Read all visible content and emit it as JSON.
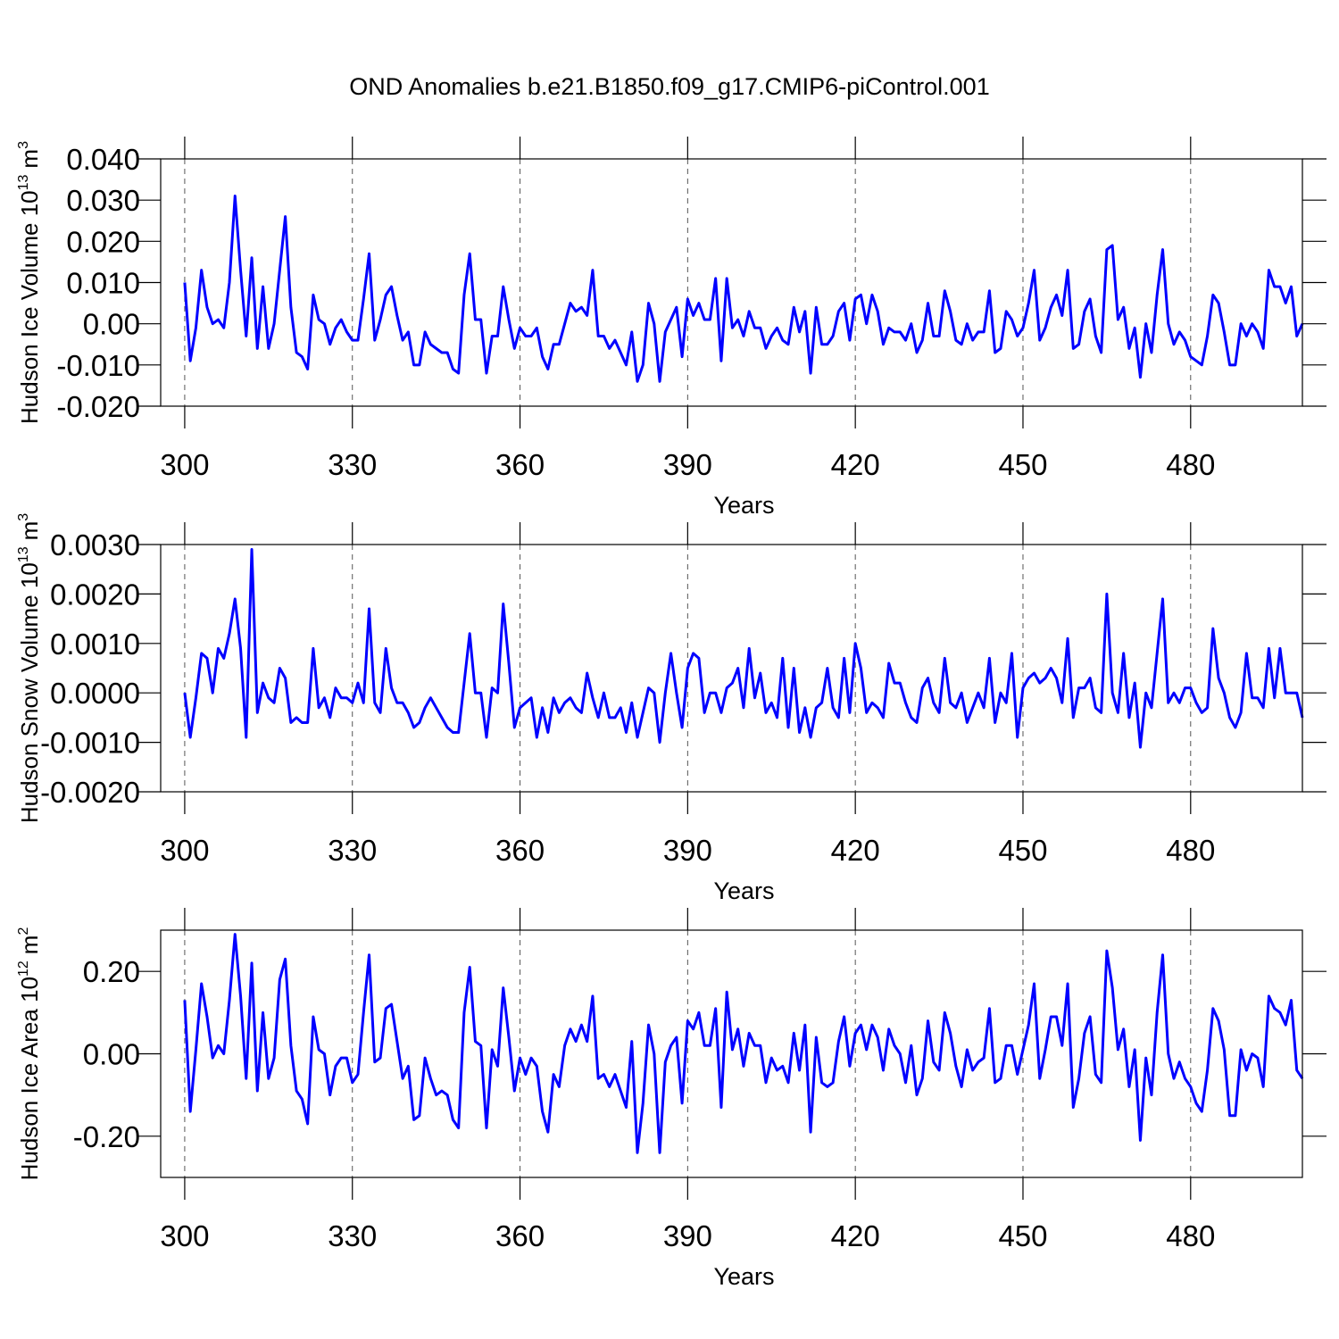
{
  "chart_data": [
    {
      "type": "line",
      "title": "OND Anomalies b.e21.B1850.f09_g17.CMIP6-piControl.001",
      "ylabel": [
        "Hudson Ice Volume 10",
        "13",
        "m",
        "3"
      ],
      "xlabel": "Years",
      "color": "#0000ff",
      "grid_x": true,
      "xlim": [
        295.7,
        500
      ],
      "xticks": [
        300,
        330,
        360,
        390,
        420,
        450,
        480
      ],
      "ylim": [
        -0.02,
        0.04
      ],
      "yticks": [
        {
          "value": 0.04,
          "label": "0.040"
        },
        {
          "value": 0.03,
          "label": "0.030"
        },
        {
          "value": 0.02,
          "label": "0.020"
        },
        {
          "value": 0.01,
          "label": "0.010"
        },
        {
          "value": 0,
          "label": "0.00"
        },
        {
          "value": -0.01,
          "label": "-0.010"
        },
        {
          "value": -0.02,
          "label": "-0.020"
        }
      ],
      "x": [
        300,
        301,
        302,
        303,
        304,
        305,
        306,
        307,
        308,
        309,
        310,
        311,
        312,
        313,
        314,
        315,
        316,
        317,
        318,
        319,
        320,
        321,
        322,
        323,
        324,
        325,
        326,
        327,
        328,
        329,
        330,
        331,
        332,
        333,
        334,
        335,
        336,
        337,
        338,
        339,
        340,
        341,
        342,
        343,
        344,
        345,
        346,
        347,
        348,
        349,
        350,
        351,
        352,
        353,
        354,
        355,
        356,
        357,
        358,
        359,
        360,
        361,
        362,
        363,
        364,
        365,
        366,
        367,
        368,
        369,
        370,
        371,
        372,
        373,
        374,
        375,
        376,
        377,
        378,
        379,
        380,
        381,
        382,
        383,
        384,
        385,
        386,
        387,
        388,
        389,
        390,
        391,
        392,
        393,
        394,
        395,
        396,
        397,
        398,
        399,
        400,
        401,
        402,
        403,
        404,
        405,
        406,
        407,
        408,
        409,
        410,
        411,
        412,
        413,
        414,
        415,
        416,
        417,
        418,
        419,
        420,
        421,
        422,
        423,
        424,
        425,
        426,
        427,
        428,
        429,
        430,
        431,
        432,
        433,
        434,
        435,
        436,
        437,
        438,
        439,
        440,
        441,
        442,
        443,
        444,
        445,
        446,
        447,
        448,
        449,
        450,
        451,
        452,
        453,
        454,
        455,
        456,
        457,
        458,
        459,
        460,
        461,
        462,
        463,
        464,
        465,
        466,
        467,
        468,
        469,
        470,
        471,
        472,
        473,
        474,
        475,
        476,
        477,
        478,
        479,
        480,
        481,
        482,
        483,
        484,
        485,
        486,
        487,
        488,
        489,
        490,
        491,
        492,
        493,
        494,
        495,
        496,
        497,
        498,
        499,
        500
      ],
      "values": [
        0.01,
        -0.009,
        -0.001,
        0.013,
        0.004,
        0.0,
        0.001,
        -0.001,
        0.01,
        0.031,
        0.013,
        -0.003,
        0.016,
        -0.006,
        0.009,
        -0.006,
        0.0,
        0.013,
        0.026,
        0.004,
        -0.007,
        -0.008,
        -0.011,
        0.007,
        0.001,
        0.0,
        -0.005,
        -0.001,
        0.001,
        -0.002,
        -0.004,
        -0.004,
        0.006,
        0.017,
        -0.004,
        0.001,
        0.007,
        0.009,
        0.002,
        -0.004,
        -0.002,
        -0.01,
        -0.01,
        -0.002,
        -0.005,
        -0.006,
        -0.007,
        -0.007,
        -0.011,
        -0.012,
        0.007,
        0.017,
        0.001,
        0.001,
        -0.012,
        -0.003,
        -0.003,
        0.009,
        0.001,
        -0.006,
        -0.001,
        -0.003,
        -0.003,
        -0.001,
        -0.008,
        -0.011,
        -0.005,
        -0.005,
        0.0,
        0.005,
        0.003,
        0.004,
        0.002,
        0.013,
        -0.003,
        -0.003,
        -0.006,
        -0.004,
        -0.007,
        -0.01,
        -0.002,
        -0.014,
        -0.01,
        0.005,
        0.0,
        -0.014,
        -0.002,
        0.001,
        0.004,
        -0.008,
        0.006,
        0.002,
        0.005,
        0.001,
        0.001,
        0.011,
        -0.009,
        0.011,
        -0.001,
        0.001,
        -0.003,
        0.003,
        -0.001,
        -0.001,
        -0.006,
        -0.003,
        -0.001,
        -0.004,
        -0.005,
        0.004,
        -0.002,
        0.003,
        -0.012,
        0.004,
        -0.005,
        -0.005,
        -0.003,
        0.003,
        0.005,
        -0.004,
        0.006,
        0.007,
        0.0,
        0.007,
        0.003,
        -0.005,
        -0.001,
        -0.002,
        -0.002,
        -0.004,
        0.0,
        -0.007,
        -0.004,
        0.005,
        -0.003,
        -0.003,
        0.008,
        0.003,
        -0.004,
        -0.005,
        0.0,
        -0.004,
        -0.002,
        -0.002,
        0.008,
        -0.007,
        -0.006,
        0.003,
        0.001,
        -0.003,
        -0.001,
        0.005,
        0.013,
        -0.004,
        -0.001,
        0.004,
        0.007,
        0.002,
        0.013,
        -0.006,
        -0.005,
        0.003,
        0.006,
        -0.003,
        -0.007,
        0.018,
        0.019,
        0.001,
        0.004,
        -0.006,
        -0.001,
        -0.013,
        0.0,
        -0.007,
        0.007,
        0.018,
        0.0,
        -0.005,
        -0.002,
        -0.004,
        -0.008,
        -0.009,
        -0.01,
        -0.003,
        0.007,
        0.005,
        -0.002,
        -0.01,
        -0.01,
        0.0,
        -0.003,
        0.0,
        -0.002,
        -0.006,
        0.013,
        0.009,
        0.009,
        0.005,
        0.009,
        -0.003,
        0.0
      ]
    },
    {
      "type": "line",
      "ylabel": [
        "Hudson Snow Volume 10",
        "13",
        "m",
        "3"
      ],
      "xlabel": "Years",
      "color": "#0000ff",
      "grid_x": true,
      "xlim": [
        295.7,
        500
      ],
      "xticks": [
        300,
        330,
        360,
        390,
        420,
        450,
        480
      ],
      "ylim": [
        -0.002,
        0.003
      ],
      "yticks": [
        {
          "value": 0.003,
          "label": "0.0030"
        },
        {
          "value": 0.002,
          "label": "0.0020"
        },
        {
          "value": 0.001,
          "label": "0.0010"
        },
        {
          "value": 0,
          "label": "0.0000"
        },
        {
          "value": -0.001,
          "label": "-0.0010"
        },
        {
          "value": -0.002,
          "label": "-0.0020"
        }
      ],
      "x": [
        300,
        301,
        302,
        303,
        304,
        305,
        306,
        307,
        308,
        309,
        310,
        311,
        312,
        313,
        314,
        315,
        316,
        317,
        318,
        319,
        320,
        321,
        322,
        323,
        324,
        325,
        326,
        327,
        328,
        329,
        330,
        331,
        332,
        333,
        334,
        335,
        336,
        337,
        338,
        339,
        340,
        341,
        342,
        343,
        344,
        345,
        346,
        347,
        348,
        349,
        350,
        351,
        352,
        353,
        354,
        355,
        356,
        357,
        358,
        359,
        360,
        361,
        362,
        363,
        364,
        365,
        366,
        367,
        368,
        369,
        370,
        371,
        372,
        373,
        374,
        375,
        376,
        377,
        378,
        379,
        380,
        381,
        382,
        383,
        384,
        385,
        386,
        387,
        388,
        389,
        390,
        391,
        392,
        393,
        394,
        395,
        396,
        397,
        398,
        399,
        400,
        401,
        402,
        403,
        404,
        405,
        406,
        407,
        408,
        409,
        410,
        411,
        412,
        413,
        414,
        415,
        416,
        417,
        418,
        419,
        420,
        421,
        422,
        423,
        424,
        425,
        426,
        427,
        428,
        429,
        430,
        431,
        432,
        433,
        434,
        435,
        436,
        437,
        438,
        439,
        440,
        441,
        442,
        443,
        444,
        445,
        446,
        447,
        448,
        449,
        450,
        451,
        452,
        453,
        454,
        455,
        456,
        457,
        458,
        459,
        460,
        461,
        462,
        463,
        464,
        465,
        466,
        467,
        468,
        469,
        470,
        471,
        472,
        473,
        474,
        475,
        476,
        477,
        478,
        479,
        480,
        481,
        482,
        483,
        484,
        485,
        486,
        487,
        488,
        489,
        490,
        491,
        492,
        493,
        494,
        495,
        496,
        497,
        498,
        499,
        500
      ],
      "values": [
        0.0,
        -0.0009,
        -0.0001,
        0.0008,
        0.0007,
        0.0,
        0.0009,
        0.0007,
        0.0012,
        0.0019,
        0.0009,
        -0.0009,
        0.0029,
        -0.0004,
        0.0002,
        -0.0001,
        -0.0002,
        0.0005,
        0.0003,
        -0.0006,
        -0.0005,
        -0.0006,
        -0.0006,
        0.0009,
        -0.0003,
        -0.0001,
        -0.0005,
        0.0001,
        -0.0001,
        -0.0001,
        -0.0002,
        0.0002,
        -0.0002,
        0.0017,
        -0.0002,
        -0.0004,
        0.0009,
        0.0001,
        -0.0002,
        -0.0002,
        -0.0004,
        -0.0007,
        -0.0006,
        -0.0003,
        -0.0001,
        -0.0003,
        -0.0005,
        -0.0007,
        -0.0008,
        -0.0008,
        0.0002,
        0.0012,
        0.0,
        0.0,
        -0.0009,
        0.0001,
        0.0,
        0.0018,
        0.0006,
        -0.0007,
        -0.0003,
        -0.0002,
        -0.0001,
        -0.0009,
        -0.0003,
        -0.0008,
        -0.0001,
        -0.0004,
        -0.0002,
        -0.0001,
        -0.0003,
        -0.0004,
        0.0004,
        -0.0001,
        -0.0005,
        0.0,
        -0.0005,
        -0.0005,
        -0.0003,
        -0.0008,
        -0.0002,
        -0.0009,
        -0.0004,
        0.0001,
        0.0,
        -0.001,
        0.0,
        0.0008,
        0.0,
        -0.0007,
        0.0005,
        0.0008,
        0.0007,
        -0.0004,
        0.0,
        0.0,
        -0.0004,
        0.0001,
        0.0002,
        0.0005,
        -0.0003,
        0.0009,
        -0.0001,
        0.0004,
        -0.0004,
        -0.0002,
        -0.0005,
        0.0007,
        -0.0007,
        0.0005,
        -0.0008,
        -0.0003,
        -0.0009,
        -0.0003,
        -0.0002,
        0.0005,
        -0.0003,
        -0.0005,
        0.0007,
        -0.0004,
        0.001,
        0.0005,
        -0.0004,
        -0.0002,
        -0.0003,
        -0.0005,
        0.0006,
        0.0002,
        0.0002,
        -0.0002,
        -0.0005,
        -0.0006,
        0.0001,
        0.0003,
        -0.0002,
        -0.0004,
        0.0007,
        -0.0002,
        -0.0003,
        0.0,
        -0.0006,
        -0.0003,
        0.0,
        -0.0003,
        0.0007,
        -0.0006,
        0.0,
        -0.0002,
        0.0008,
        -0.0009,
        0.0001,
        0.0003,
        0.0004,
        0.0002,
        0.0003,
        0.0005,
        0.0003,
        -0.0002,
        0.0011,
        -0.0005,
        0.0001,
        0.0001,
        0.0003,
        -0.0003,
        -0.0004,
        0.002,
        0.0,
        -0.0004,
        0.0008,
        -0.0005,
        0.0002,
        -0.0011,
        0.0,
        -0.0003,
        0.0008,
        0.0019,
        -0.0002,
        0.0,
        -0.0002,
        0.0001,
        0.0001,
        -0.0002,
        -0.0004,
        -0.0003,
        0.0013,
        0.0003,
        0.0,
        -0.0005,
        -0.0007,
        -0.0004,
        0.0008,
        -0.0001,
        -0.0001,
        -0.0003,
        0.0009,
        -0.0001,
        0.0009,
        0.0,
        0.0,
        0.0,
        -0.0005
      ]
    },
    {
      "type": "line",
      "ylabel": [
        "Hudson Ice Area 10",
        "12",
        "m",
        "2"
      ],
      "xlabel": "Years",
      "color": "#0000ff",
      "grid_x": true,
      "xlim": [
        295.7,
        500
      ],
      "xticks": [
        300,
        330,
        360,
        390,
        420,
        450,
        480
      ],
      "ylim": [
        -0.3,
        0.3
      ],
      "yticks": [
        {
          "value": 0.2,
          "label": "0.20"
        },
        {
          "value": 0,
          "label": "0.00"
        },
        {
          "value": -0.2,
          "label": "-0.20"
        }
      ],
      "x": [
        300,
        301,
        302,
        303,
        304,
        305,
        306,
        307,
        308,
        309,
        310,
        311,
        312,
        313,
        314,
        315,
        316,
        317,
        318,
        319,
        320,
        321,
        322,
        323,
        324,
        325,
        326,
        327,
        328,
        329,
        330,
        331,
        332,
        333,
        334,
        335,
        336,
        337,
        338,
        339,
        340,
        341,
        342,
        343,
        344,
        345,
        346,
        347,
        348,
        349,
        350,
        351,
        352,
        353,
        354,
        355,
        356,
        357,
        358,
        359,
        360,
        361,
        362,
        363,
        364,
        365,
        366,
        367,
        368,
        369,
        370,
        371,
        372,
        373,
        374,
        375,
        376,
        377,
        378,
        379,
        380,
        381,
        382,
        383,
        384,
        385,
        386,
        387,
        388,
        389,
        390,
        391,
        392,
        393,
        394,
        395,
        396,
        397,
        398,
        399,
        400,
        401,
        402,
        403,
        404,
        405,
        406,
        407,
        408,
        409,
        410,
        411,
        412,
        413,
        414,
        415,
        416,
        417,
        418,
        419,
        420,
        421,
        422,
        423,
        424,
        425,
        426,
        427,
        428,
        429,
        430,
        431,
        432,
        433,
        434,
        435,
        436,
        437,
        438,
        439,
        440,
        441,
        442,
        443,
        444,
        445,
        446,
        447,
        448,
        449,
        450,
        451,
        452,
        453,
        454,
        455,
        456,
        457,
        458,
        459,
        460,
        461,
        462,
        463,
        464,
        465,
        466,
        467,
        468,
        469,
        470,
        471,
        472,
        473,
        474,
        475,
        476,
        477,
        478,
        479,
        480,
        481,
        482,
        483,
        484,
        485,
        486,
        487,
        488,
        489,
        490,
        491,
        492,
        493,
        494,
        495,
        496,
        497,
        498,
        499,
        500
      ],
      "values": [
        0.13,
        -0.14,
        0.01,
        0.17,
        0.09,
        -0.01,
        0.02,
        0.0,
        0.13,
        0.29,
        0.14,
        -0.06,
        0.22,
        -0.09,
        0.1,
        -0.06,
        -0.01,
        0.18,
        0.23,
        0.02,
        -0.09,
        -0.11,
        -0.17,
        0.09,
        0.01,
        0.0,
        -0.1,
        -0.03,
        -0.01,
        -0.01,
        -0.07,
        -0.05,
        0.1,
        0.24,
        -0.02,
        -0.01,
        0.11,
        0.12,
        0.03,
        -0.06,
        -0.03,
        -0.16,
        -0.15,
        -0.01,
        -0.06,
        -0.1,
        -0.09,
        -0.1,
        -0.16,
        -0.18,
        0.1,
        0.21,
        0.03,
        0.02,
        -0.18,
        0.01,
        -0.03,
        0.16,
        0.04,
        -0.09,
        -0.01,
        -0.05,
        -0.01,
        -0.03,
        -0.14,
        -0.19,
        -0.05,
        -0.08,
        0.02,
        0.06,
        0.03,
        0.07,
        0.03,
        0.14,
        -0.06,
        -0.05,
        -0.08,
        -0.05,
        -0.09,
        -0.13,
        0.03,
        -0.24,
        -0.12,
        0.07,
        0.0,
        -0.24,
        -0.02,
        0.02,
        0.04,
        -0.12,
        0.08,
        0.06,
        0.1,
        0.02,
        0.02,
        0.11,
        -0.13,
        0.15,
        0.01,
        0.06,
        -0.03,
        0.05,
        0.02,
        0.02,
        -0.07,
        -0.01,
        -0.04,
        -0.03,
        -0.07,
        0.05,
        -0.04,
        0.07,
        -0.19,
        0.04,
        -0.07,
        -0.08,
        -0.07,
        0.03,
        0.09,
        -0.03,
        0.05,
        0.07,
        0.01,
        0.07,
        0.04,
        -0.04,
        0.06,
        0.02,
        0.0,
        -0.07,
        0.02,
        -0.1,
        -0.06,
        0.08,
        -0.02,
        -0.04,
        0.1,
        0.05,
        -0.03,
        -0.08,
        0.01,
        -0.04,
        -0.02,
        -0.01,
        0.11,
        -0.07,
        -0.06,
        0.02,
        0.02,
        -0.05,
        0.01,
        0.07,
        0.17,
        -0.06,
        0.01,
        0.09,
        0.09,
        0.02,
        0.17,
        -0.13,
        -0.06,
        0.05,
        0.09,
        -0.05,
        -0.07,
        0.25,
        0.16,
        0.01,
        0.06,
        -0.08,
        0.01,
        -0.21,
        -0.01,
        -0.1,
        0.1,
        0.24,
        0.0,
        -0.06,
        -0.02,
        -0.06,
        -0.08,
        -0.12,
        -0.14,
        -0.04,
        0.11,
        0.08,
        0.01,
        -0.15,
        -0.15,
        0.01,
        -0.04,
        0.0,
        -0.01,
        -0.08,
        0.14,
        0.11,
        0.1,
        0.07,
        0.13,
        -0.04,
        -0.06
      ]
    }
  ]
}
